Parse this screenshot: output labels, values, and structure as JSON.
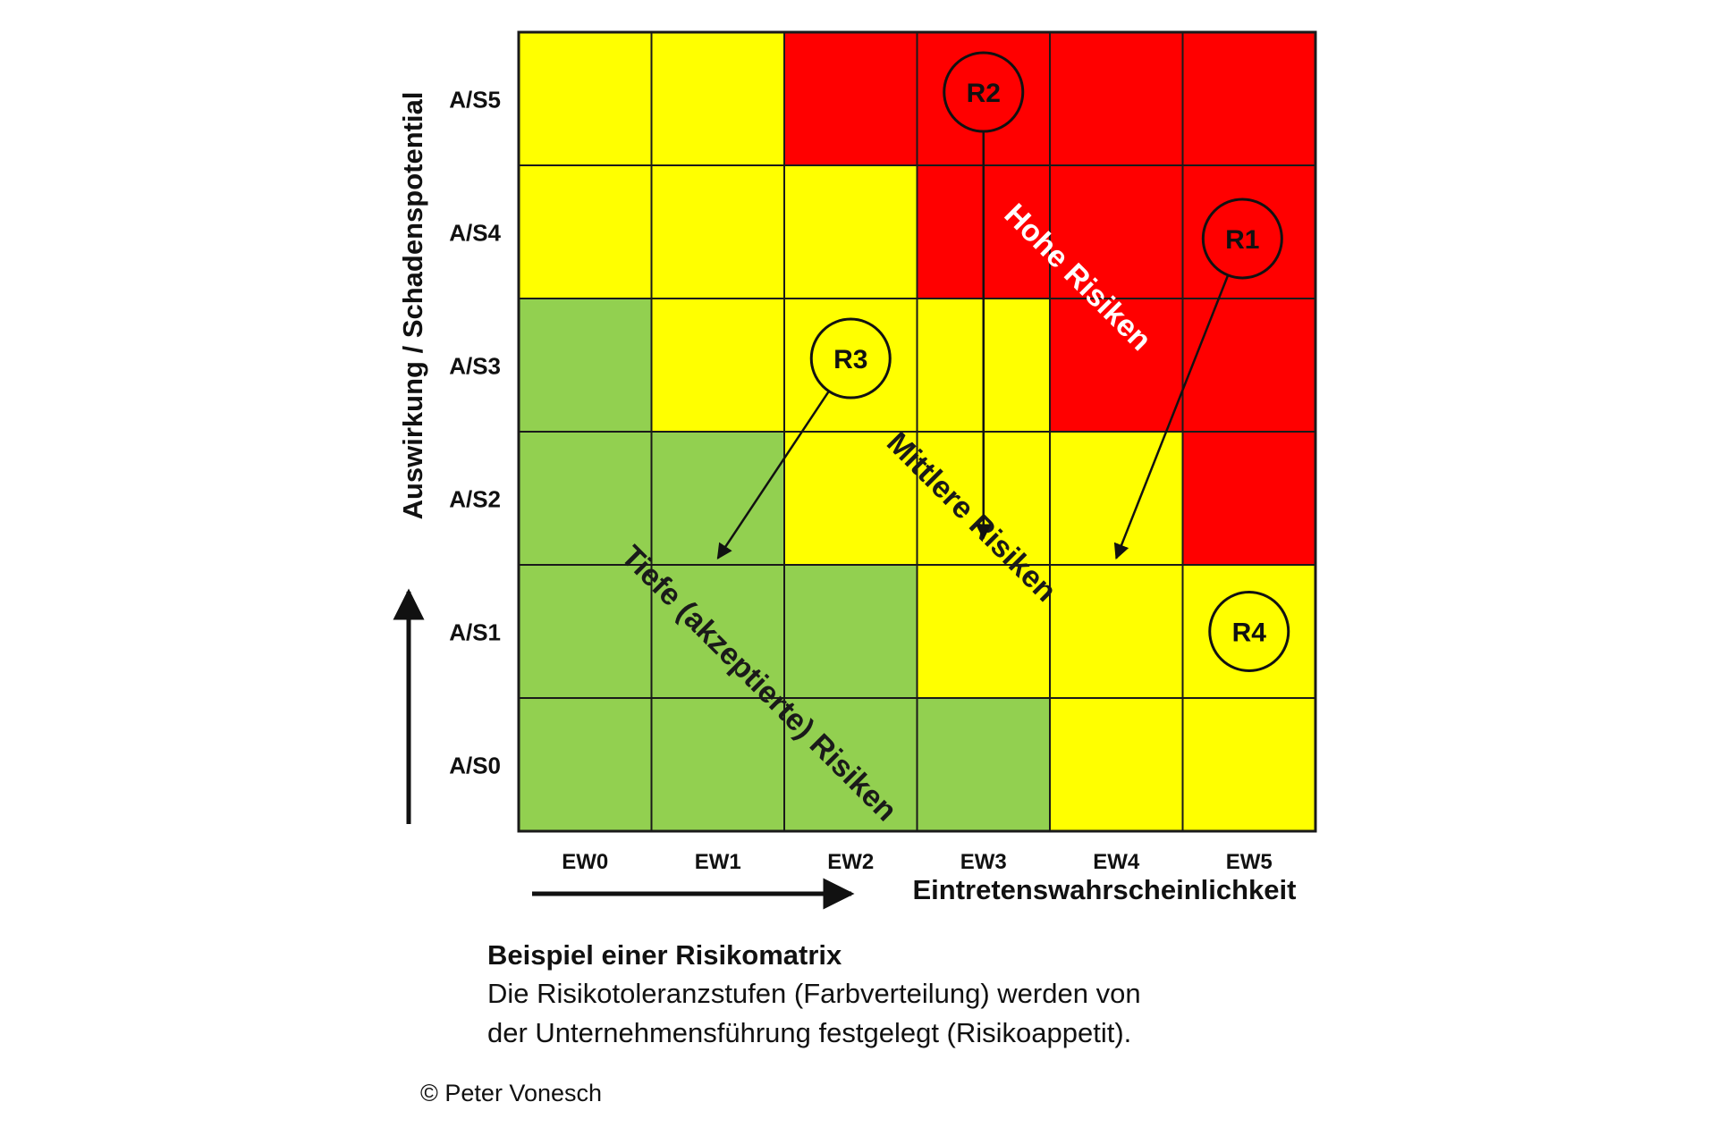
{
  "chart_data": {
    "type": "heatmap",
    "title": "",
    "xlabel": "Eintretenswahrscheinlichkeit",
    "ylabel": "Auswirkung / Schadenspotential",
    "x_categories": [
      "EW0",
      "EW1",
      "EW2",
      "EW3",
      "EW4",
      "EW5"
    ],
    "y_categories": [
      "A/S5",
      "A/S4",
      "A/S3",
      "A/S2",
      "A/S1",
      "A/S0"
    ],
    "levels": {
      "G": {
        "color": "#92d050"
      },
      "Y": {
        "color": "#ffff00"
      },
      "R": {
        "color": "#ff0000"
      }
    },
    "cells": [
      [
        "Y",
        "Y",
        "R",
        "R",
        "R",
        "R"
      ],
      [
        "Y",
        "Y",
        "Y",
        "R",
        "R",
        "R"
      ],
      [
        "G",
        "Y",
        "Y",
        "Y",
        "R",
        "R"
      ],
      [
        "G",
        "G",
        "Y",
        "Y",
        "Y",
        "R"
      ],
      [
        "G",
        "G",
        "G",
        "Y",
        "Y",
        "Y"
      ],
      [
        "G",
        "G",
        "G",
        "G",
        "Y",
        "Y"
      ]
    ],
    "zone_labels": [
      {
        "text": "Hohe Risiken",
        "x": 4.2,
        "y": 4.15,
        "color": "#ffffff"
      },
      {
        "text": "Mittlere Risiken",
        "x": 3.4,
        "y": 2.35,
        "color": "#1a1a1a"
      },
      {
        "text": "Tiefe (akzeptierte) Risiken",
        "x": 1.8,
        "y": 1.1,
        "color": "#1a1a1a"
      }
    ],
    "risks": [
      {
        "id": "R1",
        "x": 5.45,
        "y": 4.45,
        "to": {
          "x": 4.5,
          "y": 2.05
        }
      },
      {
        "id": "R2",
        "x": 3.5,
        "y": 5.55,
        "to": {
          "x": 3.5,
          "y": 2.2
        }
      },
      {
        "id": "R3",
        "x": 2.5,
        "y": 3.55,
        "to": {
          "x": 1.5,
          "y": 2.05
        }
      },
      {
        "id": "R4",
        "x": 5.5,
        "y": 1.5
      }
    ]
  },
  "caption": {
    "title": "Beispiel einer Risikomatrix",
    "line1": "Die Risikotoleranzstufen (Farbverteilung) werden von",
    "line2": "der Unternehmensführung festgelegt (Risikoappetit)."
  },
  "copyright": "© Peter Vonesch"
}
